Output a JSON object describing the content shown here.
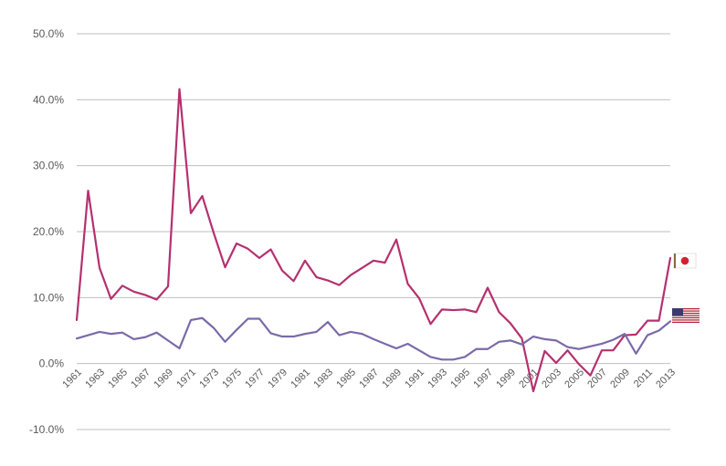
{
  "chart_data": {
    "type": "line",
    "title": "",
    "xlabel": "",
    "ylabel": "",
    "ylim": [
      -10,
      50
    ],
    "yticks": [
      -10,
      0,
      10,
      20,
      30,
      40,
      50
    ],
    "ytick_labels": [
      "-10.0%",
      "0.0%",
      "10.0%",
      "20.0%",
      "30.0%",
      "40.0%",
      "50.0%"
    ],
    "grid": true,
    "legend": "right, country flags",
    "x": [
      1961,
      1962,
      1963,
      1964,
      1965,
      1966,
      1967,
      1968,
      1969,
      1970,
      1971,
      1972,
      1973,
      1974,
      1975,
      1976,
      1977,
      1978,
      1979,
      1980,
      1981,
      1982,
      1983,
      1984,
      1985,
      1986,
      1987,
      1988,
      1989,
      1990,
      1991,
      1992,
      1993,
      1994,
      1995,
      1996,
      1997,
      1998,
      1999,
      2000,
      2001,
      2002,
      2003,
      2004,
      2005,
      2006,
      2007,
      2008,
      2009,
      2010,
      2011,
      2012,
      2013
    ],
    "xtick_labels": [
      "1961",
      "1963",
      "1965",
      "1967",
      "1969",
      "1971",
      "1973",
      "1975",
      "1977",
      "1979",
      "1981",
      "1983",
      "1985",
      "1987",
      "1989",
      "1991",
      "1993",
      "1995",
      "1997",
      "1999",
      "2001",
      "2003",
      "2005",
      "2007",
      "2009",
      "2011",
      "2013"
    ],
    "series": [
      {
        "flag": "japan-flag-icon",
        "color": "#b5306f",
        "values": [
          6.6,
          26.2,
          14.5,
          9.8,
          11.8,
          10.9,
          10.4,
          9.7,
          11.7,
          41.6,
          22.8,
          25.4,
          19.8,
          14.6,
          18.2,
          17.4,
          16.0,
          17.3,
          14.1,
          12.5,
          15.6,
          13.1,
          12.6,
          11.9,
          13.4,
          14.5,
          15.6,
          15.3,
          18.8,
          12.1,
          9.9,
          6.0,
          8.2,
          8.1,
          8.2,
          7.8,
          11.5,
          7.8,
          6.1,
          3.8,
          -4.2,
          1.9,
          0.1,
          2.0,
          -0.1,
          -1.8,
          2.0,
          2.0,
          4.3,
          4.4,
          6.5,
          6.5,
          16.0
        ]
      },
      {
        "flag": "usa-flag-icon",
        "color": "#7b6aa8",
        "values": [
          3.8,
          4.3,
          4.8,
          4.5,
          4.7,
          3.7,
          4.0,
          4.7,
          3.5,
          2.3,
          6.6,
          6.9,
          5.4,
          3.3,
          5.1,
          6.8,
          6.8,
          4.6,
          4.1,
          4.1,
          4.5,
          4.8,
          6.3,
          4.3,
          4.8,
          4.5,
          3.7,
          3.0,
          2.3,
          3.0,
          2.0,
          1.0,
          0.6,
          0.6,
          1.0,
          2.2,
          2.2,
          3.3,
          3.5,
          2.9,
          4.1,
          3.7,
          3.5,
          2.5,
          2.2,
          2.6,
          3.0,
          3.6,
          4.5,
          1.5,
          4.3,
          5.0,
          6.4
        ]
      }
    ]
  }
}
